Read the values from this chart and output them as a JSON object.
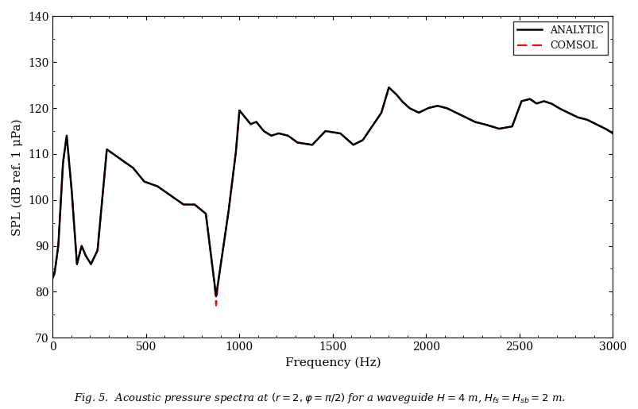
{
  "xlabel": "Frequency (Hz)",
  "ylabel": "SPL (dB ref. 1 μPa)",
  "xlim": [
    0,
    3000
  ],
  "ylim": [
    70,
    140
  ],
  "yticks": [
    70,
    80,
    90,
    100,
    110,
    120,
    130,
    140
  ],
  "xticks": [
    0,
    500,
    1000,
    1500,
    2000,
    2500,
    3000
  ],
  "analytic_color": "#000000",
  "comsol_color": "#ff0000",
  "analytic_lw": 1.8,
  "comsol_lw": 1.5,
  "comsol_dash": [
    6,
    3
  ],
  "legend_loc": "upper right",
  "background": "#ffffff",
  "key_f": [
    0,
    10,
    30,
    55,
    75,
    100,
    130,
    155,
    175,
    205,
    240,
    290,
    360,
    430,
    490,
    560,
    630,
    700,
    760,
    820,
    875,
    900,
    940,
    980,
    1000,
    1030,
    1060,
    1090,
    1130,
    1170,
    1210,
    1260,
    1310,
    1390,
    1460,
    1540,
    1610,
    1660,
    1710,
    1760,
    1800,
    1840,
    1870,
    1910,
    1960,
    2010,
    2060,
    2110,
    2160,
    2210,
    2260,
    2310,
    2390,
    2460,
    2510,
    2555,
    2590,
    2630,
    2670,
    2710,
    2760,
    2810,
    2860,
    2910,
    2960,
    3000
  ],
  "key_spl": [
    83,
    84,
    90,
    108,
    114,
    103,
    86,
    90,
    88,
    86,
    89,
    111,
    109,
    107,
    104,
    103,
    101,
    99,
    99,
    97,
    79,
    86,
    97,
    110,
    119.5,
    118,
    116.5,
    117,
    115,
    114,
    114.5,
    114,
    112.5,
    112,
    115,
    114.5,
    112,
    113,
    116,
    119,
    124.5,
    123,
    121.5,
    120,
    119,
    120,
    120.5,
    120,
    119,
    118,
    117,
    116.5,
    115.5,
    116,
    121.5,
    122,
    121,
    121.5,
    121,
    120,
    119,
    118,
    117.5,
    116.5,
    115.5,
    114.5
  ]
}
